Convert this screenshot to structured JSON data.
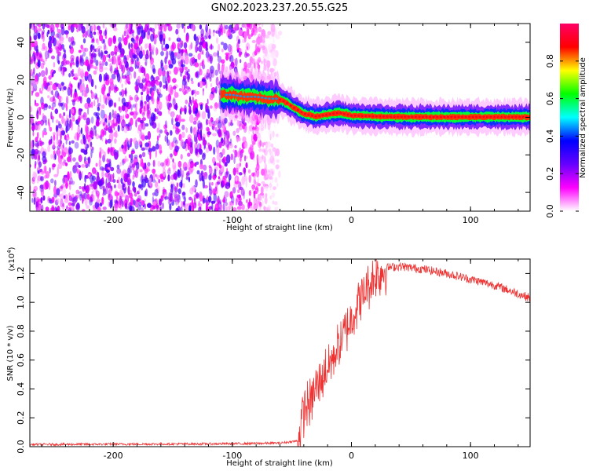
{
  "title": "GN02.2023.237.20.55.G25",
  "chart_data": [
    {
      "type": "heatmap",
      "xlabel": "Height of straight line (km)",
      "ylabel": "Frequency (Hz)",
      "xlim": [
        -270,
        150
      ],
      "ylim": [
        -50,
        50
      ],
      "xticks": [
        -200,
        -100,
        0,
        100
      ],
      "yticks": [
        -40,
        -20,
        0,
        20,
        40
      ],
      "colorbar": {
        "label": "Normalized spectral amplitude",
        "range": [
          0,
          1
        ],
        "ticks": [
          "0.0",
          "0.2",
          "0.4",
          "0.6",
          "0.8"
        ],
        "colors": [
          "#ffffff",
          "#ff00ff",
          "#6600ff",
          "#0000ff",
          "#00ffff",
          "#00ff00",
          "#ffff00",
          "#ff0000",
          "#ff0066"
        ]
      },
      "noise_region_km": [
        -270,
        -62
      ],
      "ridge": {
        "x": [
          -110,
          -100,
          -90,
          -80,
          -70,
          -62,
          -55,
          -48,
          -40,
          -30,
          -20,
          -10,
          0,
          20,
          40,
          60,
          80,
          100,
          120,
          150
        ],
        "freq": [
          12,
          12,
          11,
          11,
          10,
          10,
          8,
          5,
          2,
          0.5,
          1.5,
          2.5,
          1,
          0.5,
          0.3,
          0.2,
          0.2,
          0.2,
          0.2,
          0.2
        ]
      }
    },
    {
      "type": "line",
      "xlabel": "Height of straight line (km)",
      "ylabel": "SNR (10 * v/v)",
      "yunit": "(x10",
      "yunit_exp": "4",
      "yunit_close": ")",
      "xlim": [
        -270,
        150
      ],
      "ylim": [
        0,
        1.3
      ],
      "xticks": [
        -200,
        -100,
        0,
        100
      ],
      "yticks": [
        "0.0",
        "0.2",
        "0.4",
        "0.6",
        "0.8",
        "1.0",
        "1.2"
      ],
      "color": "#ee3333",
      "series": [
        {
          "x": [
            -270,
            -200,
            -100,
            -60,
            -45,
            -40,
            -35,
            -30,
            -20,
            -10,
            -5,
            0,
            10,
            20,
            30,
            40,
            50,
            60,
            80,
            100,
            120,
            140,
            150
          ],
          "y": [
            0.015,
            0.017,
            0.02,
            0.025,
            0.04,
            0.25,
            0.3,
            0.4,
            0.55,
            0.7,
            0.8,
            0.9,
            1.05,
            1.18,
            1.24,
            1.25,
            1.24,
            1.23,
            1.2,
            1.16,
            1.12,
            1.06,
            1.03
          ]
        }
      ]
    }
  ]
}
